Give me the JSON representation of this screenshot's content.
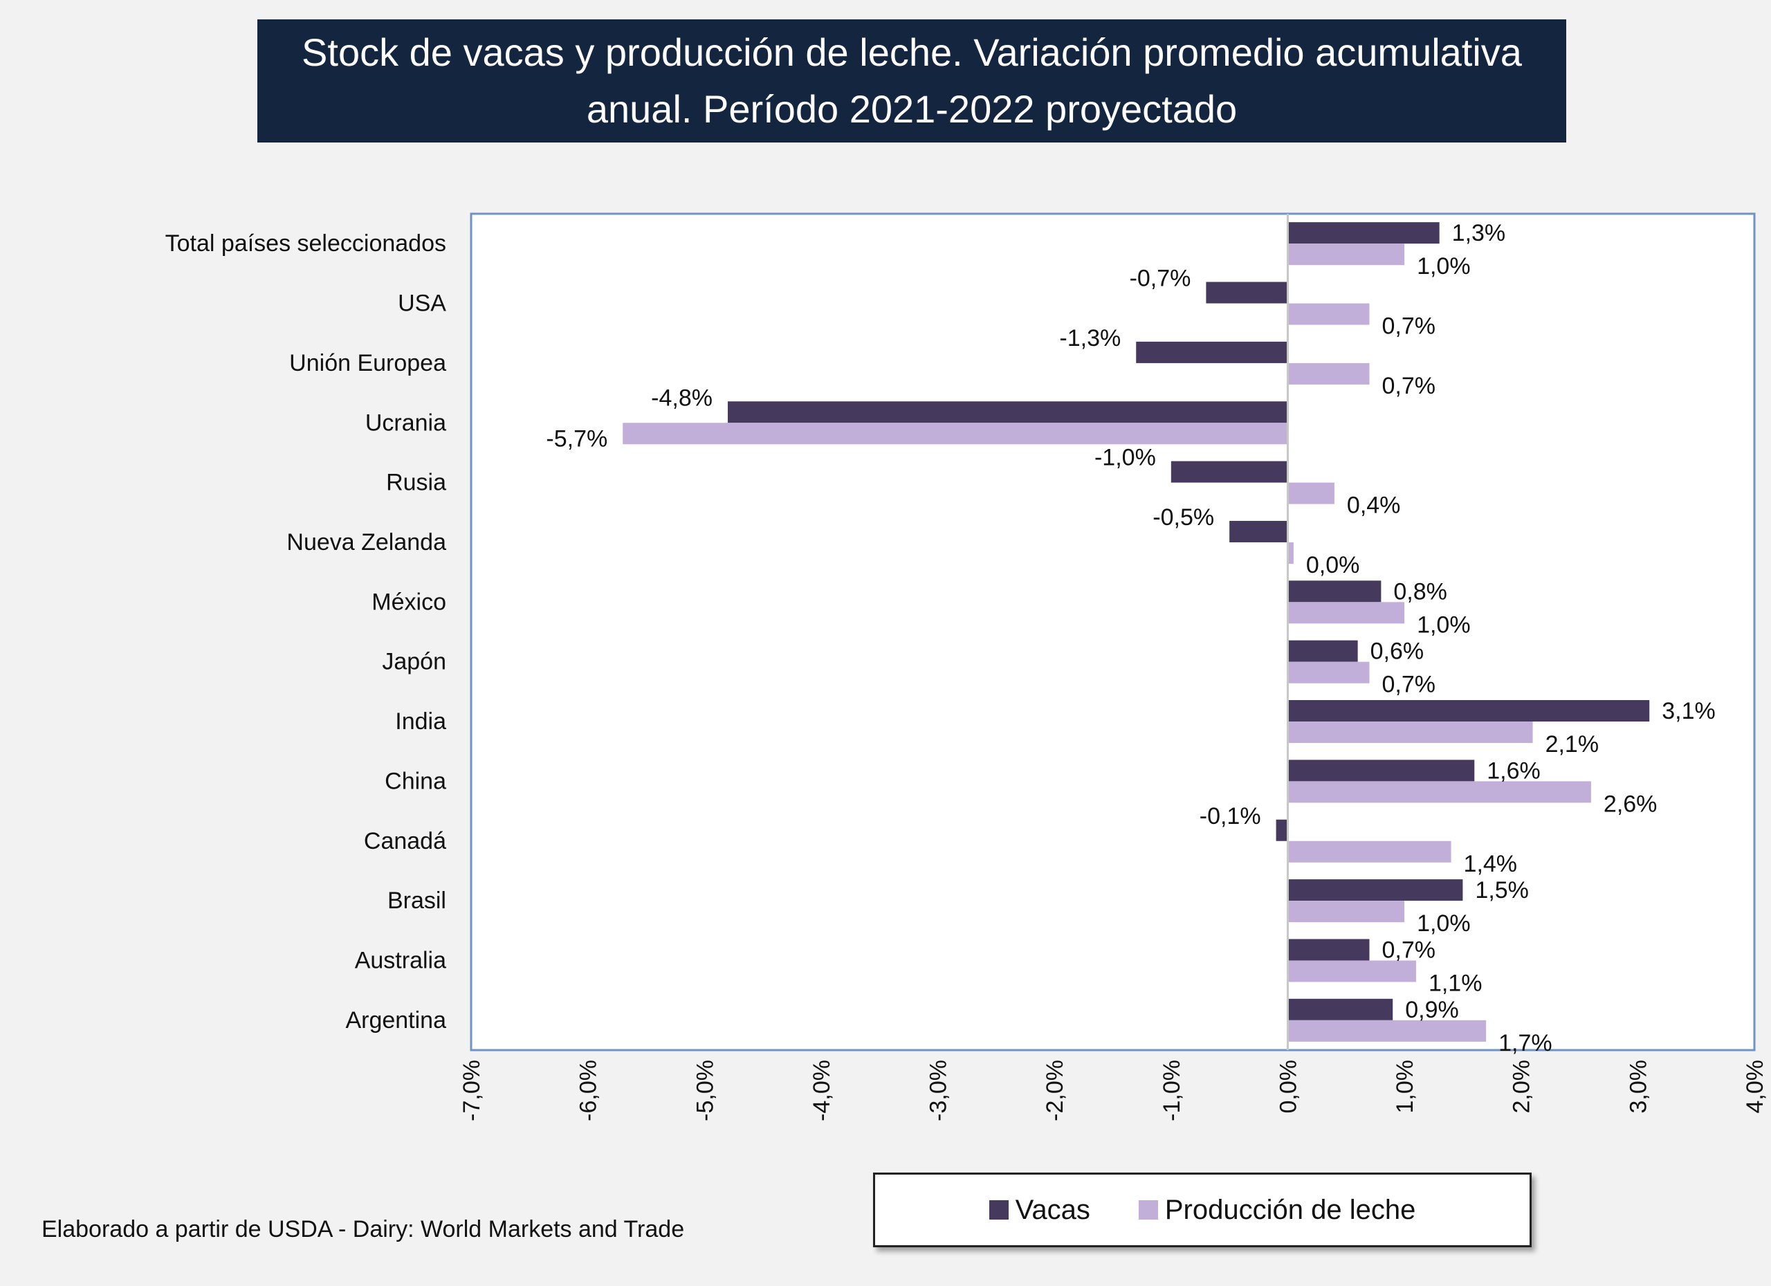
{
  "title": {
    "line1": "Stock de vacas y producción de leche. Variación promedio acumulativa",
    "line2": "anual. Período 2021-2022 proyectado"
  },
  "colors": {
    "vacas": "#453a5e",
    "leche": "#c2afd9",
    "frame": "#6f93c4",
    "zero_line": "#c8c8c8"
  },
  "chart_data": {
    "type": "bar",
    "orientation": "horizontal",
    "title": "Stock de vacas y producción de leche. Variación promedio acumulativa anual. Período 2021-2022 proyectado",
    "categories": [
      "Total países seleccionados",
      "USA",
      "Unión Europea",
      "Ucrania",
      "Rusia",
      "Nueva Zelanda",
      "México",
      "Japón",
      "India",
      "China",
      "Canadá",
      "Brasil",
      "Australia",
      "Argentina"
    ],
    "series": [
      {
        "name": "Vacas",
        "values": [
          1.3,
          -0.7,
          -1.3,
          -4.8,
          -1.0,
          -0.5,
          0.8,
          0.6,
          3.1,
          1.6,
          -0.1,
          1.5,
          0.7,
          0.9
        ],
        "labels": [
          "1,3%",
          "-0,7%",
          "-1,3%",
          "-4,8%",
          "-1,0%",
          "-0,5%",
          "0,8%",
          "0,6%",
          "3,1%",
          "1,6%",
          "-0,1%",
          "1,5%",
          "0,7%",
          "0,9%"
        ]
      },
      {
        "name": "Producción de leche",
        "values": [
          1.0,
          0.7,
          0.7,
          -5.7,
          0.4,
          0.05,
          1.0,
          0.7,
          2.1,
          2.6,
          1.4,
          1.0,
          1.1,
          1.7
        ],
        "labels": [
          "1,0%",
          "0,7%",
          "0,7%",
          "-5,7%",
          "0,4%",
          "0,0%",
          "1,0%",
          "0,7%",
          "2,1%",
          "2,6%",
          "1,4%",
          "1,0%",
          "1,1%",
          "1,7%"
        ]
      }
    ],
    "xlim": [
      -7,
      4
    ],
    "x_ticks": [
      -7,
      -6,
      -5,
      -4,
      -3,
      -2,
      -1,
      0,
      1,
      2,
      3,
      4
    ],
    "x_tick_labels": [
      "-7,0%",
      "-6,0%",
      "-5,0%",
      "-4,0%",
      "-3,0%",
      "-2,0%",
      "-1,0%",
      "0,0%",
      "1,0%",
      "2,0%",
      "3,0%",
      "4,0%"
    ],
    "legend_position": "bottom-right"
  },
  "legend": {
    "vacas": "Vacas",
    "leche": "Producción de leche"
  },
  "source": "Elaborado a partir de USDA - Dairy: World Markets and Trade"
}
